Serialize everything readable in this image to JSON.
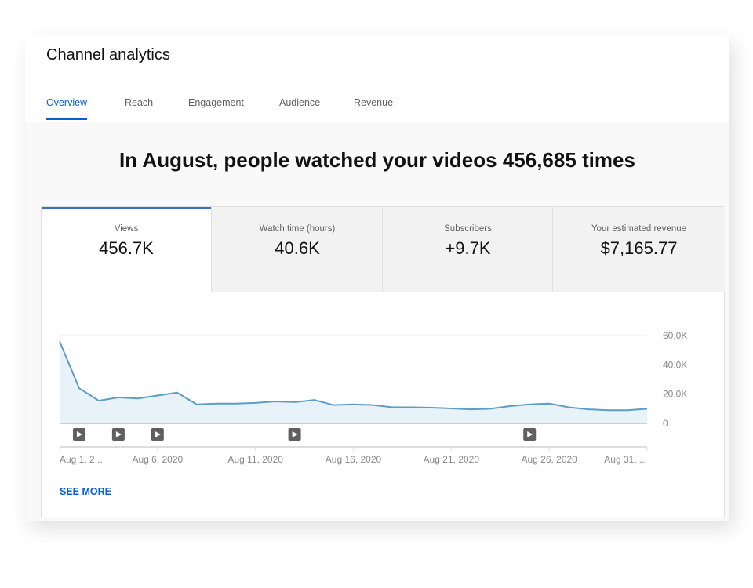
{
  "title": "Channel analytics",
  "tabs": [
    {
      "label": "Overview",
      "active": true
    },
    {
      "label": "Reach"
    },
    {
      "label": "Engagement"
    },
    {
      "label": "Audience"
    },
    {
      "label": "Revenue"
    }
  ],
  "headline": "In August, people watched your videos 456,685 times",
  "metrics": [
    {
      "label": "Views",
      "value": "456.7K",
      "active": true
    },
    {
      "label": "Watch time (hours)",
      "value": "40.6K"
    },
    {
      "label": "Subscribers",
      "value": "+9.7K"
    },
    {
      "label": "Your estimated revenue",
      "value": "$7,165.77"
    }
  ],
  "see_more": "SEE MORE",
  "chart_data": {
    "type": "area",
    "x": [
      "Aug 1",
      "Aug 2",
      "Aug 3",
      "Aug 4",
      "Aug 5",
      "Aug 6",
      "Aug 7",
      "Aug 8",
      "Aug 9",
      "Aug 10",
      "Aug 11",
      "Aug 12",
      "Aug 13",
      "Aug 14",
      "Aug 15",
      "Aug 16",
      "Aug 17",
      "Aug 18",
      "Aug 19",
      "Aug 20",
      "Aug 21",
      "Aug 22",
      "Aug 23",
      "Aug 24",
      "Aug 25",
      "Aug 26",
      "Aug 27",
      "Aug 28",
      "Aug 29",
      "Aug 30",
      "Aug 31"
    ],
    "values": [
      56000,
      24000,
      15500,
      17700,
      17000,
      19000,
      21000,
      13000,
      13500,
      13500,
      14000,
      15000,
      14500,
      16000,
      12500,
      13000,
      12500,
      11000,
      11000,
      10700,
      10200,
      9600,
      10000,
      11800,
      13000,
      13500,
      11000,
      9600,
      9000,
      9000,
      10000
    ],
    "ylim": [
      0,
      60000
    ],
    "yticks": [
      "0",
      "20.0K",
      "40.0K",
      "60.0K"
    ],
    "xtick_labels": [
      "Aug 1, 2...",
      "Aug 6, 2020",
      "Aug 11, 2020",
      "Aug 16, 2020",
      "Aug 21, 2020",
      "Aug 26, 2020",
      "Aug 31, ..."
    ],
    "video_markers": [
      "Aug 2",
      "Aug 4",
      "Aug 6",
      "Aug 13",
      "Aug 25"
    ],
    "grid": true,
    "line_color": "#5b9dc7",
    "fill_color": "#e8f3f9"
  }
}
